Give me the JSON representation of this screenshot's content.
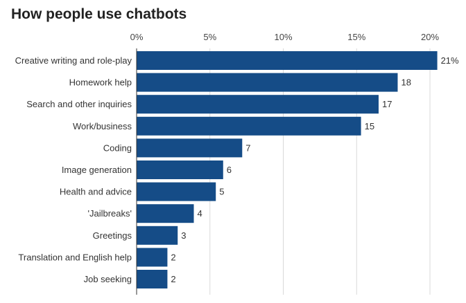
{
  "chart_data": {
    "type": "bar",
    "orientation": "horizontal",
    "title": "How people use chatbots",
    "categories": [
      "Creative writing and role-play",
      "Homework help",
      "Search and other inquiries",
      "Work/business",
      "Coding",
      "Image generation",
      "Health and advice",
      "'Jailbreaks'",
      "Greetings",
      "Translation and English help",
      "Job seeking"
    ],
    "values": [
      20.5,
      17.8,
      16.5,
      15.3,
      7.2,
      5.9,
      5.4,
      3.9,
      2.8,
      2.1,
      2.1
    ],
    "value_labels": [
      "21%",
      "18",
      "17",
      "15",
      "7",
      "6",
      "5",
      "4",
      "3",
      "2",
      "2"
    ],
    "xlim": [
      0,
      21
    ],
    "x_ticks": [
      0,
      5,
      10,
      15,
      20
    ],
    "x_tick_labels": [
      "0%",
      "5%",
      "10%",
      "15%",
      "20%"
    ],
    "axis_position": "top",
    "grid": true,
    "bar_color": "#154c87"
  }
}
